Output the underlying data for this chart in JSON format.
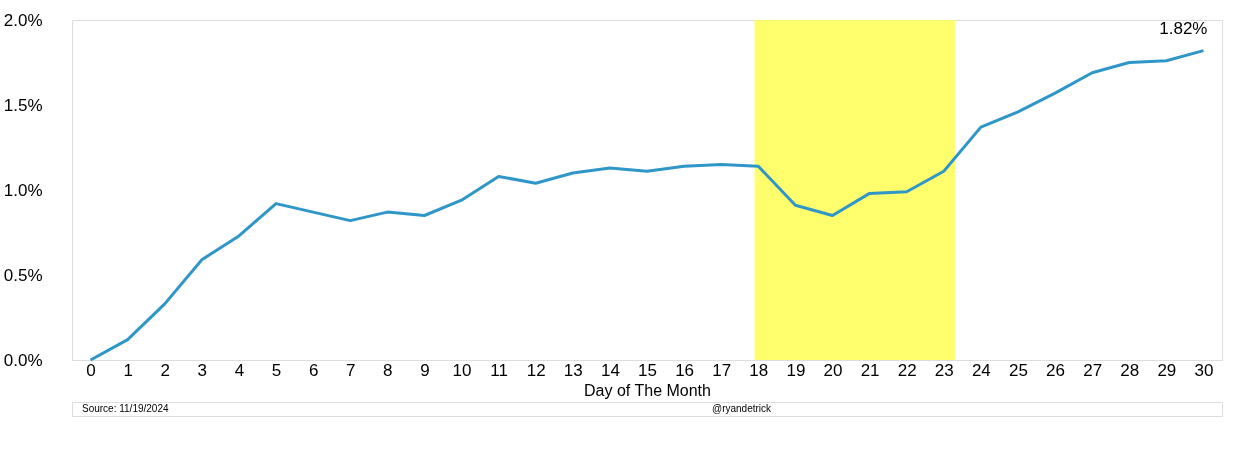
{
  "chart_data": {
    "type": "line",
    "xlabel": "Day of The Month",
    "x": [
      0,
      1,
      2,
      3,
      4,
      5,
      6,
      7,
      8,
      9,
      10,
      11,
      12,
      13,
      14,
      15,
      16,
      17,
      18,
      19,
      20,
      21,
      22,
      23,
      24,
      25,
      26,
      27,
      28,
      29,
      30
    ],
    "series": [
      {
        "color": "#2f96c8",
        "values": [
          0,
          0.12,
          0.33,
          0.59,
          0.73,
          0.92,
          0.87,
          0.82,
          0.87,
          0.85,
          0.94,
          1.08,
          1.04,
          1.1,
          1.13,
          1.11,
          1.14,
          1.15,
          1.14,
          0.91,
          0.85,
          0.98,
          0.99,
          1.11,
          1.37,
          1.46,
          1.57,
          1.69,
          1.75,
          1.76,
          1.82
        ]
      }
    ],
    "xlim": [
      -0.5,
      30.5
    ],
    "xticks": [
      0,
      1,
      2,
      3,
      4,
      5,
      6,
      7,
      8,
      9,
      10,
      11,
      12,
      13,
      14,
      15,
      16,
      17,
      18,
      19,
      20,
      21,
      22,
      23,
      24,
      25,
      26,
      27,
      28,
      29,
      30
    ],
    "ylim": [
      0,
      2
    ],
    "yticks": [
      {
        "value": 0,
        "label": "0.0%"
      },
      {
        "value": 0.5,
        "label": "0.5%"
      },
      {
        "value": 1,
        "label": "1.0%"
      },
      {
        "value": 1.5,
        "label": "1.5%"
      },
      {
        "value": 2,
        "label": "2.0%"
      }
    ],
    "bands": [
      {
        "axis": "x",
        "from": 17.9,
        "to": 23.3,
        "color": "#ffff55"
      }
    ],
    "annotations": [
      {
        "text": "1.82%",
        "x": 30,
        "y": 1.82
      },
      "Source: 11/19/2024",
      "@ryandetrick"
    ],
    "grid": false,
    "line_style": "solid",
    "marker": "none"
  }
}
